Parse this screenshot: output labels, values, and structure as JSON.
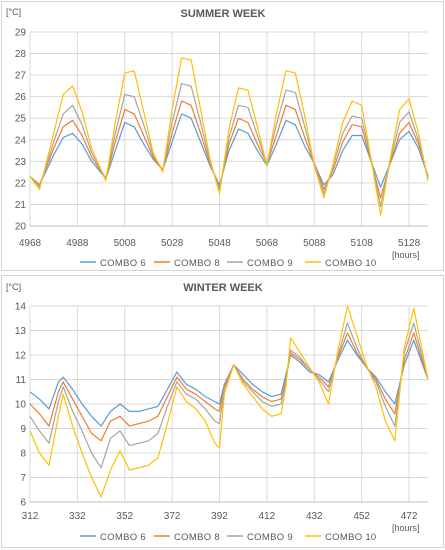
{
  "chart_data": [
    {
      "type": "line",
      "title": "SUMMER WEEK",
      "ylabel": "[°C]",
      "xlabel": "[hours]",
      "xlim": [
        4968,
        5136
      ],
      "ylim": [
        20,
        29
      ],
      "xticks": [
        4968,
        4988,
        5008,
        5028,
        5048,
        5068,
        5088,
        5108,
        5128
      ],
      "yticks": [
        20,
        21,
        22,
        23,
        24,
        25,
        26,
        27,
        28,
        29
      ],
      "grid": true,
      "legend_position": "bottom",
      "series": [
        {
          "name": "COMBO 6",
          "color": "#5b9bd5",
          "x": [
            4968,
            4972,
            4978,
            4982,
            4986,
            4990,
            4994,
            5000,
            5004,
            5008,
            5012,
            5016,
            5020,
            5024,
            5028,
            5032,
            5036,
            5040,
            5044,
            5048,
            5052,
            5056,
            5060,
            5064,
            5068,
            5072,
            5076,
            5080,
            5084,
            5088,
            5092,
            5096,
            5100,
            5104,
            5108,
            5112,
            5116,
            5120,
            5124,
            5128,
            5132,
            5136
          ],
          "y": [
            22.3,
            21.9,
            23.3,
            24.1,
            24.3,
            23.8,
            23.0,
            22.2,
            23.5,
            24.8,
            24.6,
            23.8,
            23.1,
            22.6,
            23.9,
            25.2,
            25.0,
            23.9,
            22.8,
            21.9,
            23.5,
            24.5,
            24.3,
            23.5,
            22.8,
            23.8,
            24.9,
            24.7,
            23.7,
            22.9,
            21.9,
            22.4,
            23.5,
            24.2,
            24.2,
            23.0,
            21.8,
            22.9,
            24.0,
            24.4,
            23.6,
            22.3
          ]
        },
        {
          "name": "COMBO 8",
          "color": "#ed7d31",
          "x": [
            4968,
            4972,
            4978,
            4982,
            4986,
            4990,
            4994,
            5000,
            5004,
            5008,
            5012,
            5016,
            5020,
            5024,
            5028,
            5032,
            5036,
            5040,
            5044,
            5048,
            5052,
            5056,
            5060,
            5064,
            5068,
            5072,
            5076,
            5080,
            5084,
            5088,
            5092,
            5096,
            5100,
            5104,
            5108,
            5112,
            5116,
            5120,
            5124,
            5128,
            5132,
            5136
          ],
          "y": [
            22.3,
            21.9,
            23.6,
            24.6,
            24.9,
            24.2,
            23.2,
            22.2,
            23.9,
            25.4,
            25.2,
            24.2,
            23.2,
            22.6,
            24.3,
            25.8,
            25.6,
            24.3,
            22.9,
            21.8,
            23.8,
            25.0,
            24.8,
            23.8,
            22.9,
            24.2,
            25.6,
            25.4,
            24.1,
            22.9,
            21.7,
            22.6,
            23.9,
            24.7,
            24.6,
            23.0,
            21.3,
            22.9,
            24.3,
            24.8,
            23.8,
            22.3
          ]
        },
        {
          "name": "COMBO 9",
          "color": "#a5a5a5",
          "x": [
            4968,
            4972,
            4978,
            4982,
            4986,
            4990,
            4994,
            5000,
            5004,
            5008,
            5012,
            5016,
            5020,
            5024,
            5028,
            5032,
            5036,
            5040,
            5044,
            5048,
            5052,
            5056,
            5060,
            5064,
            5068,
            5072,
            5076,
            5080,
            5084,
            5088,
            5092,
            5096,
            5100,
            5104,
            5108,
            5112,
            5116,
            5120,
            5124,
            5128,
            5132,
            5136
          ],
          "y": [
            22.3,
            21.8,
            23.9,
            25.2,
            25.6,
            24.7,
            23.4,
            22.2,
            24.3,
            26.1,
            26.0,
            24.7,
            23.3,
            22.6,
            24.8,
            26.6,
            26.5,
            24.8,
            23.0,
            21.7,
            24.1,
            25.6,
            25.5,
            24.2,
            22.9,
            24.7,
            26.3,
            26.2,
            24.6,
            22.9,
            21.5,
            22.8,
            24.3,
            25.1,
            25.0,
            23.1,
            20.9,
            23.0,
            24.8,
            25.3,
            24.0,
            22.2
          ]
        },
        {
          "name": "COMBO 10",
          "color": "#ffc000",
          "x": [
            4968,
            4972,
            4978,
            4982,
            4986,
            4990,
            4994,
            5000,
            5004,
            5008,
            5012,
            5016,
            5020,
            5024,
            5028,
            5032,
            5036,
            5040,
            5044,
            5048,
            5052,
            5056,
            5060,
            5064,
            5068,
            5072,
            5076,
            5080,
            5084,
            5088,
            5092,
            5096,
            5100,
            5104,
            5108,
            5112,
            5116,
            5120,
            5124,
            5128,
            5132,
            5136
          ],
          "y": [
            22.3,
            21.7,
            24.3,
            26.1,
            26.5,
            25.3,
            23.6,
            22.1,
            24.8,
            27.1,
            27.2,
            25.3,
            23.4,
            22.5,
            25.4,
            27.8,
            27.7,
            25.4,
            23.1,
            21.5,
            24.5,
            26.4,
            26.3,
            24.6,
            22.8,
            25.2,
            27.2,
            27.1,
            25.1,
            22.8,
            21.3,
            22.9,
            24.8,
            25.8,
            25.6,
            23.1,
            20.5,
            23.1,
            25.4,
            25.9,
            24.3,
            22.1
          ]
        }
      ]
    },
    {
      "type": "line",
      "title": "WINTER WEEK",
      "ylabel": "[°C]",
      "xlabel": "[hours]",
      "xlim": [
        312,
        480
      ],
      "ylim": [
        6,
        14
      ],
      "xticks": [
        312,
        332,
        352,
        372,
        392,
        412,
        432,
        452,
        472
      ],
      "yticks": [
        6,
        7,
        8,
        9,
        10,
        11,
        12,
        13,
        14
      ],
      "grid": true,
      "legend_position": "bottom",
      "series": [
        {
          "name": "COMBO 6",
          "color": "#5b9bd5",
          "x": [
            312,
            316,
            320,
            324,
            326,
            330,
            334,
            338,
            342,
            346,
            350,
            354,
            358,
            362,
            366,
            370,
            374,
            378,
            382,
            386,
            390,
            392,
            394,
            398,
            402,
            406,
            410,
            414,
            418,
            420,
            422,
            426,
            430,
            434,
            438,
            442,
            446,
            450,
            454,
            458,
            462,
            466,
            470,
            474,
            480
          ],
          "y": [
            10.5,
            10.2,
            9.8,
            10.9,
            11.1,
            10.6,
            10.0,
            9.5,
            9.1,
            9.7,
            10.0,
            9.7,
            9.7,
            9.8,
            9.9,
            10.6,
            11.3,
            10.8,
            10.6,
            10.3,
            10.1,
            10.0,
            10.8,
            11.6,
            11.2,
            10.8,
            10.5,
            10.3,
            10.4,
            11.2,
            12.0,
            11.7,
            11.3,
            11.2,
            10.9,
            11.8,
            12.6,
            12.0,
            11.5,
            11.1,
            10.5,
            10.0,
            11.6,
            12.6,
            11.0
          ]
        },
        {
          "name": "COMBO 8",
          "color": "#ed7d31",
          "x": [
            312,
            316,
            320,
            324,
            326,
            330,
            334,
            338,
            342,
            346,
            350,
            354,
            358,
            362,
            366,
            370,
            374,
            378,
            382,
            386,
            390,
            392,
            394,
            398,
            402,
            406,
            410,
            414,
            418,
            420,
            422,
            426,
            430,
            434,
            438,
            442,
            446,
            450,
            454,
            458,
            462,
            466,
            470,
            474,
            480
          ],
          "y": [
            10.0,
            9.6,
            9.1,
            10.5,
            10.9,
            10.2,
            9.5,
            8.8,
            8.5,
            9.3,
            9.5,
            9.1,
            9.2,
            9.3,
            9.5,
            10.3,
            11.1,
            10.6,
            10.4,
            10.1,
            9.8,
            9.7,
            10.7,
            11.6,
            11.0,
            10.6,
            10.3,
            10.1,
            10.2,
            11.0,
            12.1,
            11.8,
            11.4,
            11.1,
            10.7,
            11.9,
            12.9,
            12.1,
            11.5,
            11.0,
            10.2,
            9.6,
            11.8,
            12.9,
            11.0
          ]
        },
        {
          "name": "COMBO 9",
          "color": "#a5a5a5",
          "x": [
            312,
            316,
            320,
            324,
            326,
            330,
            334,
            338,
            342,
            346,
            350,
            354,
            358,
            362,
            366,
            370,
            374,
            378,
            382,
            386,
            390,
            392,
            394,
            398,
            402,
            406,
            410,
            414,
            418,
            420,
            422,
            426,
            430,
            434,
            438,
            442,
            446,
            450,
            454,
            458,
            462,
            466,
            470,
            474,
            480
          ],
          "y": [
            9.5,
            8.9,
            8.4,
            10.1,
            10.7,
            9.7,
            8.9,
            8.0,
            7.4,
            8.6,
            8.9,
            8.3,
            8.4,
            8.5,
            8.8,
            9.9,
            10.9,
            10.4,
            10.2,
            9.8,
            9.3,
            9.2,
            10.6,
            11.6,
            10.9,
            10.5,
            10.1,
            9.9,
            10.0,
            10.9,
            12.2,
            11.9,
            11.4,
            11.0,
            10.5,
            12.0,
            13.3,
            12.3,
            11.5,
            10.9,
            9.9,
            9.1,
            12.1,
            13.3,
            11.0
          ]
        },
        {
          "name": "COMBO 10",
          "color": "#ffc000",
          "x": [
            312,
            316,
            320,
            324,
            326,
            330,
            334,
            338,
            342,
            346,
            350,
            354,
            358,
            362,
            366,
            370,
            374,
            378,
            382,
            386,
            390,
            392,
            394,
            398,
            402,
            406,
            410,
            414,
            418,
            420,
            422,
            426,
            430,
            434,
            438,
            442,
            446,
            450,
            454,
            458,
            462,
            466,
            470,
            474,
            480
          ],
          "y": [
            8.9,
            8.0,
            7.5,
            9.5,
            10.4,
            9.1,
            8.0,
            7.0,
            6.2,
            7.3,
            8.1,
            7.3,
            7.4,
            7.5,
            7.8,
            9.2,
            10.7,
            10.1,
            9.8,
            9.3,
            8.4,
            8.2,
            10.4,
            11.6,
            10.8,
            10.3,
            9.8,
            9.5,
            9.6,
            10.7,
            12.7,
            12.1,
            11.5,
            10.9,
            10.0,
            12.2,
            14.0,
            12.8,
            11.6,
            10.7,
            9.3,
            8.5,
            12.3,
            13.9,
            11.0
          ]
        }
      ]
    }
  ]
}
